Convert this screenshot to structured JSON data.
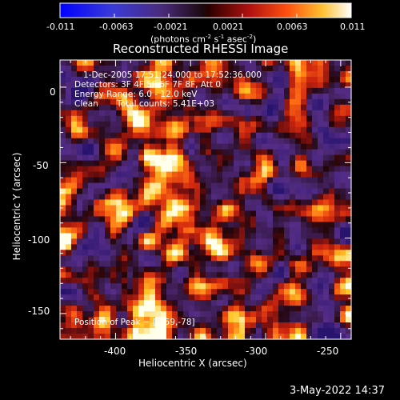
{
  "colorbar": {
    "tick_labels": [
      "-0.011",
      "-0.0063",
      "-0.0021",
      "0.0021",
      "0.0063",
      "0.011"
    ],
    "label": "(photons cm",
    "label_exp1": "-2",
    "label_mid": " s",
    "label_exp2": "-1",
    "label_end": " asec",
    "label_exp3": "-2",
    "label_close": ")"
  },
  "plot": {
    "title": "Reconstructed RHESSI Image",
    "xlabel": "Heliocentric X (arcsec)",
    "ylabel": "Heliocentric Y (arcsec)",
    "x_ticks": [
      "-400",
      "-350",
      "-300",
      "-250"
    ],
    "y_ticks": [
      "0",
      "-50",
      "-100",
      "-150"
    ],
    "xlim": [
      -437,
      -243
    ],
    "ylim": [
      -167,
      18
    ],
    "peak_x": -359,
    "peak_y": -78
  },
  "overlay": {
    "time_range": "1-Dec-2005 17:51:24.000 to 17:52:36.000",
    "detectors": "Detectors: 3F 4F 5F 6F 7F 8F, Att 0",
    "energy": "Energy Range: 6.0 - 12.0 keV",
    "method": "Clean",
    "counts": "Total counts: 5.41E+03",
    "peak": "Position of Peak = [-359,-78]"
  },
  "timestamp": "3-May-2022 14:37",
  "colors": {
    "background": "#000000",
    "foreground": "#ffffff",
    "negative_deep": "#1a1aff",
    "negative_mid": "#5a2a8a",
    "positive_dark": "#8a0f0f",
    "positive_mid": "#e03010",
    "positive_hot": "#ffb020",
    "positive_max": "#fffff0"
  }
}
